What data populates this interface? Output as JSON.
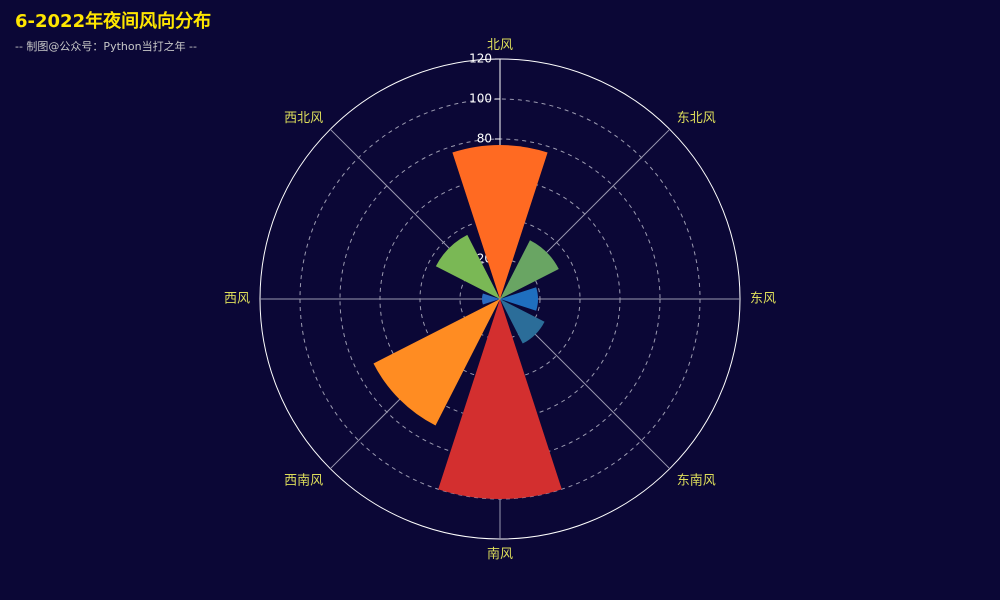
{
  "title": "6-2022年夜间风向分布",
  "subtitle": "-- 制图@公众号：Python当打之年 --",
  "colors": {
    "background": "#0b0736",
    "title": "#ffe600",
    "subtitle": "#c8c8c8",
    "category_label": "#dede5b",
    "radius_label": "#ffffff",
    "grid": "#bfbfcf"
  },
  "chart_data": {
    "type": "bar",
    "coordinate_system": "polar",
    "direction": "clockwise from north",
    "categories": [
      "北风",
      "东北风",
      "东风",
      "东南风",
      "南风",
      "西南风",
      "西风",
      "西北风"
    ],
    "values": [
      77,
      33,
      19,
      25,
      100,
      71,
      9,
      36
    ],
    "bar_colors": [
      "#ff6a22",
      "#69a563",
      "#1f6fbf",
      "#2b6d99",
      "#d32f2f",
      "#ff8c22",
      "#2a6ac0",
      "#7ab855"
    ],
    "rlim": [
      0,
      120
    ],
    "r_ticks": [
      "20",
      "40",
      "60",
      "80",
      "100",
      "120"
    ],
    "grid": true,
    "grid_style": "dashed"
  }
}
